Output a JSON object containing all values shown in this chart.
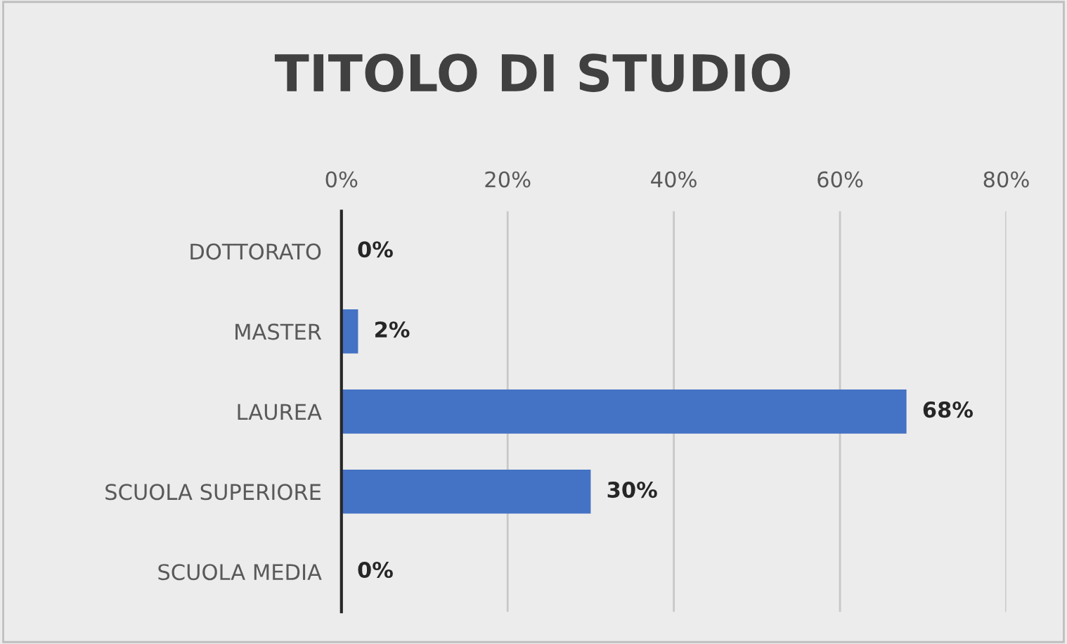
{
  "chart_data": {
    "type": "bar",
    "orientation": "horizontal",
    "title": "TITOLO DI STUDIO",
    "categories": [
      "DOTTORATO",
      "MASTER",
      "LAUREA",
      "SCUOLA SUPERIORE",
      "SCUOLA MEDIA"
    ],
    "values": [
      0,
      2,
      68,
      30,
      0
    ],
    "color": "#4472c4",
    "value_labels": [
      "0%",
      "2%",
      "68%",
      "30%",
      "0%"
    ],
    "xlim": [
      0,
      80
    ],
    "xticks": [
      {
        "value": 0,
        "label": "0%"
      },
      {
        "value": 20,
        "label": "20%"
      },
      {
        "value": 40,
        "label": "40%"
      },
      {
        "value": 60,
        "label": "60%"
      },
      {
        "value": 80,
        "label": "80%"
      }
    ],
    "grid": "x"
  }
}
